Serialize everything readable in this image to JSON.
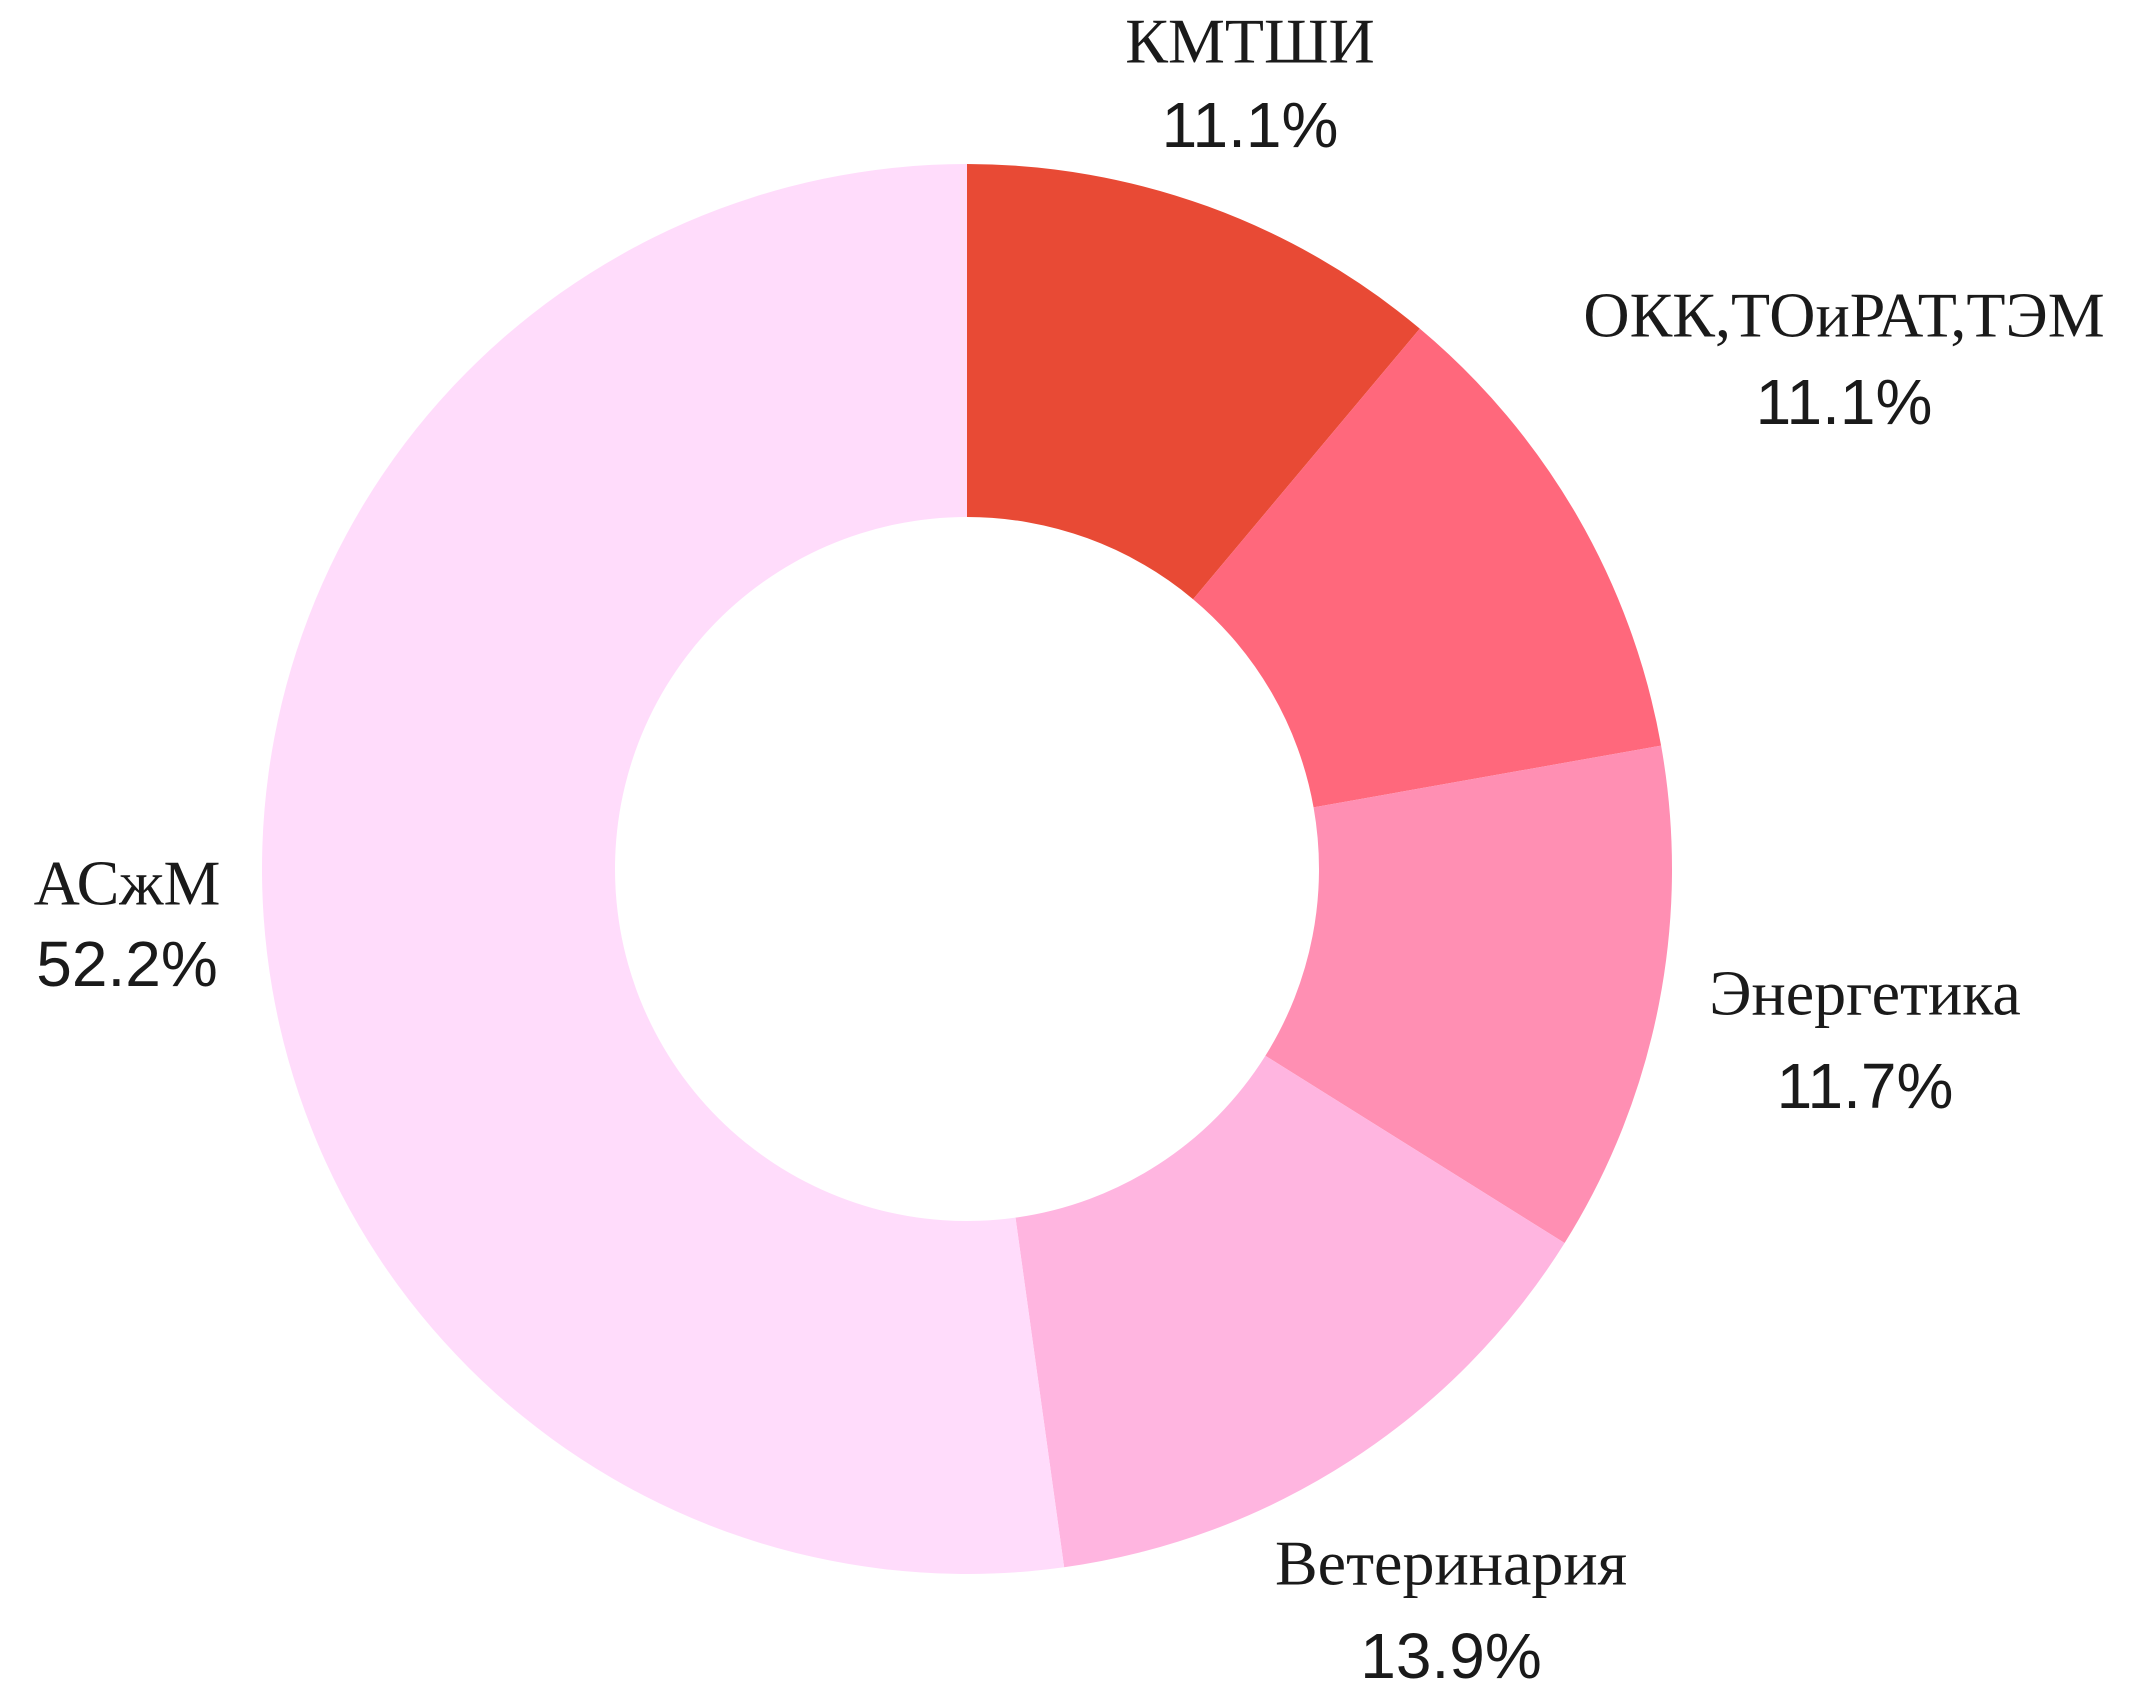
{
  "chart_data": {
    "type": "donut",
    "categories": [
      "КМТШИ",
      "ОКК,ТОиРАТ,ТЭМ",
      "Энергетика",
      "Ветеринария",
      "АСжМ"
    ],
    "values": [
      11.1,
      11.1,
      11.7,
      13.9,
      52.2
    ],
    "value_labels": [
      "11.1%",
      "11.1%",
      "11.7%",
      "13.9%",
      "52.2%"
    ],
    "colors": [
      "#e84a35",
      "#ff687c",
      "#ff8fb3",
      "#ffb5e0",
      "#ffdcfb"
    ]
  }
}
